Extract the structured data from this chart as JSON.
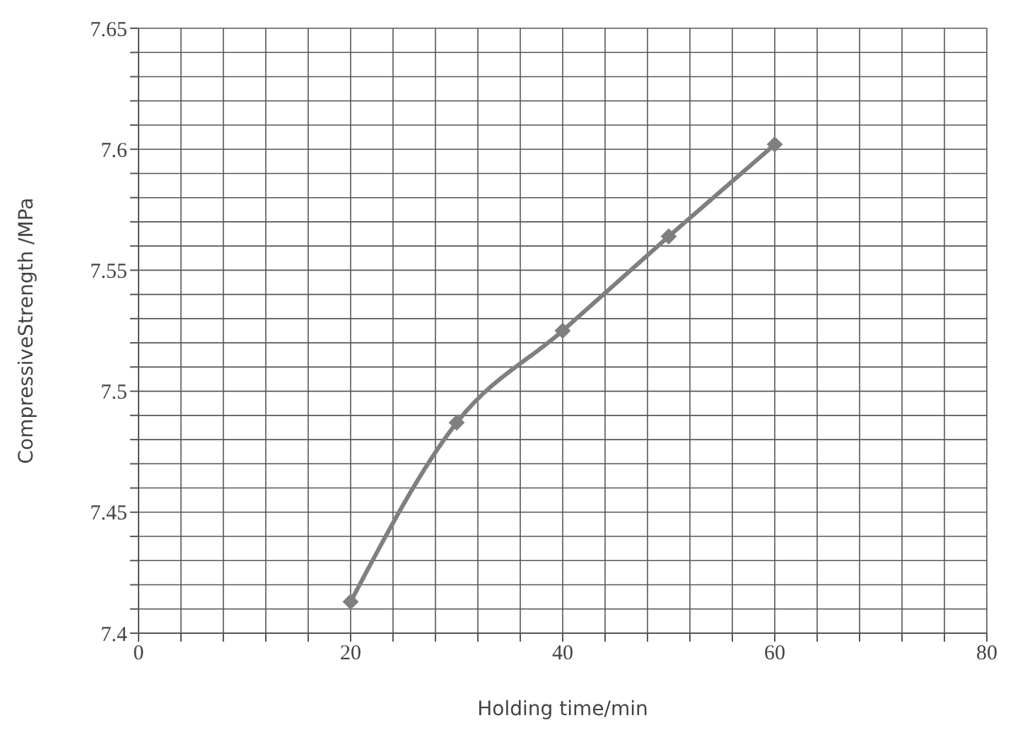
{
  "chart_data": {
    "type": "line",
    "xlabel": "Holding time/min",
    "ylabel": "CompressiveStrength /MPa",
    "x": [
      20,
      30,
      40,
      50,
      60
    ],
    "series": [
      {
        "color": "#7f7f7f",
        "values": [
          7.413,
          7.487,
          7.525,
          7.564,
          7.602
        ]
      }
    ],
    "xlim": [
      0,
      80
    ],
    "xticks": [
      0,
      {
        "value": 4,
        "label": null
      },
      {
        "value": 8,
        "label": null
      },
      {
        "value": 12,
        "label": null
      },
      {
        "value": 16,
        "label": null
      },
      20,
      {
        "value": 24,
        "label": null
      },
      {
        "value": 28,
        "label": null
      },
      {
        "value": 32,
        "label": null
      },
      {
        "value": 36,
        "label": null
      },
      40,
      {
        "value": 44,
        "label": null
      },
      {
        "value": 48,
        "label": null
      },
      {
        "value": 52,
        "label": null
      },
      {
        "value": 56,
        "label": null
      },
      60,
      {
        "value": 64,
        "label": null
      },
      {
        "value": 68,
        "label": null
      },
      {
        "value": 72,
        "label": null
      },
      {
        "value": 76,
        "label": null
      },
      80
    ],
    "ylim": [
      7.4,
      7.65
    ],
    "yticks": [
      7.4,
      {
        "value": 7.41,
        "label": null
      },
      {
        "value": 7.42,
        "label": null
      },
      {
        "value": 7.43,
        "label": null
      },
      {
        "value": 7.44,
        "label": null
      },
      7.45,
      {
        "value": 7.46,
        "label": null
      },
      {
        "value": 7.47,
        "label": null
      },
      {
        "value": 7.48,
        "label": null
      },
      {
        "value": 7.49,
        "label": null
      },
      7.5,
      {
        "value": 7.51,
        "label": null
      },
      {
        "value": 7.52,
        "label": null
      },
      {
        "value": 7.53,
        "label": null
      },
      {
        "value": 7.54,
        "label": null
      },
      7.55,
      {
        "value": 7.56,
        "label": null
      },
      {
        "value": 7.57,
        "label": null
      },
      {
        "value": 7.58,
        "label": null
      },
      {
        "value": 7.59,
        "label": null
      },
      7.6,
      {
        "value": 7.61,
        "label": null
      },
      {
        "value": 7.62,
        "label": null
      },
      {
        "value": 7.63,
        "label": null
      },
      {
        "value": 7.64,
        "label": null
      },
      7.65
    ],
    "grid": true,
    "marker": "diamond",
    "line_style": "solid",
    "legend": false
  }
}
